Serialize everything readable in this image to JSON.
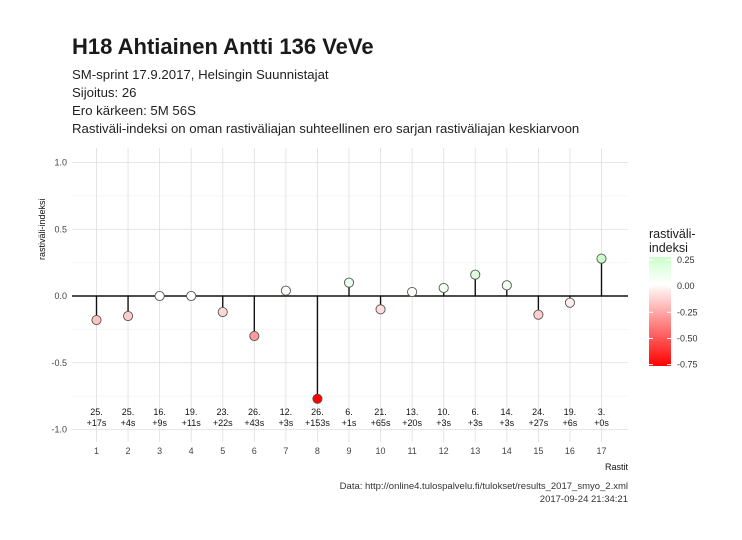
{
  "header": {
    "title": "H18 Ahtiainen Antti 136 VeVe",
    "subtitle_lines": [
      "SM-sprint 17.9.2017, Helsingin Suunnistajat",
      "Sijoitus: 26",
      "Ero kärkeen: 5M 56S",
      "Rastiväli-indeksi on oman rastiväliajan suhteellinen ero sarjan rastiväliajan keskiarvoon"
    ]
  },
  "caption": {
    "source": "Data: http://online4.tulospalvelu.fi/tulokset/results_2017_smyo_2.xml",
    "timestamp": "2017-09-24 21:34:21"
  },
  "legend": {
    "title_line1": "rastiväli-",
    "title_line2": "indeksi",
    "labels": [
      "0.25",
      "0.00",
      "-0.25",
      "-0.50",
      "-0.75"
    ],
    "color_high": "#ccffcc",
    "color_mid": "#ffffff",
    "color_low": "#ff0000"
  },
  "chart_data": {
    "type": "lollipop",
    "xlabel": "Rastit",
    "ylabel": "rastiväli-indeksi",
    "ylim": [
      -1.0,
      1.0
    ],
    "y_ticks": [
      "-1.0",
      "-0.5",
      "0.0",
      "0.5",
      "1.0"
    ],
    "x": [
      1,
      2,
      3,
      4,
      5,
      6,
      7,
      8,
      9,
      10,
      11,
      12,
      13,
      14,
      15,
      16,
      17
    ],
    "values": [
      -0.18,
      -0.15,
      0.0,
      0.0,
      -0.12,
      -0.3,
      0.04,
      -0.77,
      0.1,
      -0.1,
      0.03,
      0.06,
      0.16,
      0.08,
      -0.14,
      -0.05,
      0.28
    ],
    "split_rank": [
      "25.",
      "25.",
      "16.",
      "19.",
      "23.",
      "26.",
      "12.",
      "26.",
      "6.",
      "21.",
      "13.",
      "10.",
      "6.",
      "14.",
      "24.",
      "19.",
      "3."
    ],
    "time_behind": [
      "+17s",
      "+4s",
      "+9s",
      "+11s",
      "+22s",
      "+43s",
      "+3s",
      "+153s",
      "+1s",
      "+65s",
      "+20s",
      "+3s",
      "+3s",
      "+3s",
      "+27s",
      "+6s",
      "+0s"
    ],
    "grid": true
  }
}
